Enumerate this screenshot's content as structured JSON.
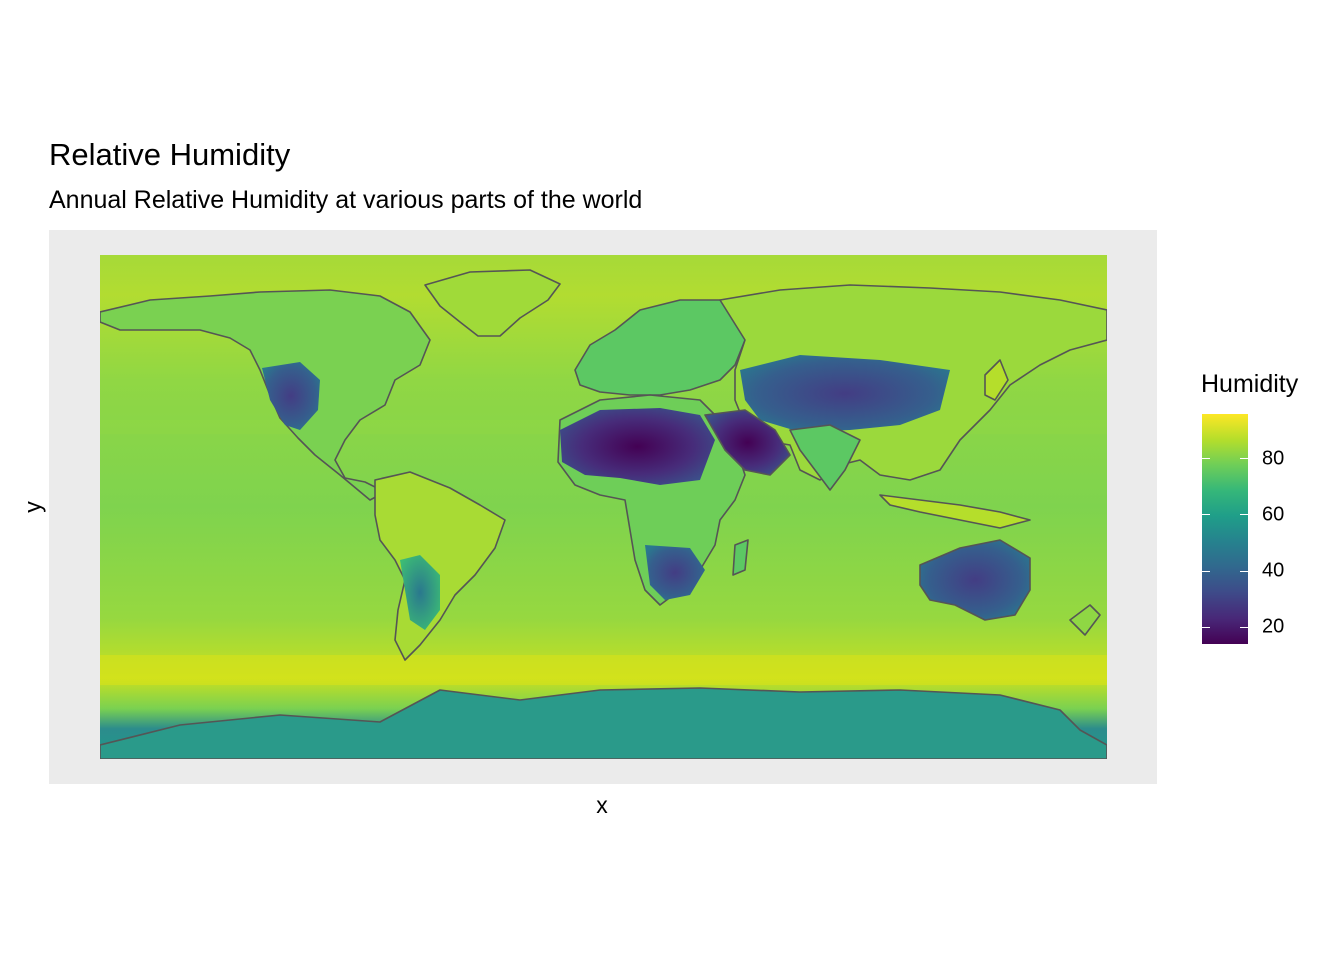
{
  "title": "Relative Humidity",
  "subtitle": "Annual Relative Humidity at various parts of the world",
  "axes": {
    "x_label": "x",
    "y_label": "y"
  },
  "legend": {
    "title": "Humidity",
    "ticks": [
      {
        "label": "20",
        "value": 20
      },
      {
        "label": "40",
        "value": 40
      },
      {
        "label": "60",
        "value": 60
      },
      {
        "label": "80",
        "value": 80
      }
    ],
    "range": [
      14,
      96
    ],
    "palette": "viridis",
    "colors": [
      "#440154",
      "#482878",
      "#3e4a89",
      "#31688e",
      "#26828e",
      "#1f9e89",
      "#35b779",
      "#6ece58",
      "#b5de2b",
      "#fde725"
    ]
  },
  "map": {
    "ocean_color": "#9bd83c",
    "outline_color": "#555555",
    "background": "#ebebeb"
  }
}
